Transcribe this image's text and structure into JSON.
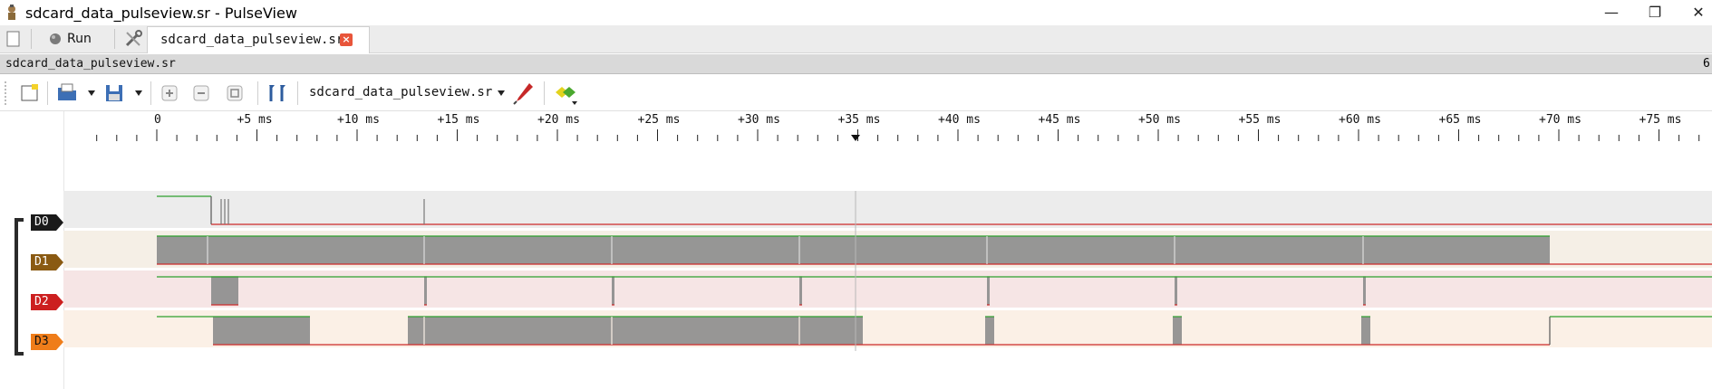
{
  "window": {
    "title": "sdcard_data_pulseview.sr - PulseView",
    "minimize_glyph": "—",
    "restore_glyph": "❐",
    "close_glyph": "✕"
  },
  "tabstrip": {
    "run_label": "Run",
    "doc_tab_label": "sdcard_data_pulseview.sr",
    "close_glyph": "×"
  },
  "session": {
    "title": "sdcard_data_pulseview.sr",
    "overflow_glyph": "6"
  },
  "toolbar": {
    "device_label": "sdcard_data_pulseview.sr"
  },
  "ruler": {
    "labels": [
      "0",
      "+5 ms",
      "+10 ms",
      "+15 ms",
      "+20 ms",
      "+25 ms",
      "+30 ms",
      "+35 ms",
      "+40 ms",
      "+45 ms",
      "+50 ms",
      "+55 ms",
      "+60 ms",
      "+65 ms",
      "+70 ms",
      "+75 ms"
    ]
  },
  "channels": [
    {
      "name": "D0",
      "color": "#1a1a1a",
      "text_color": "#ffffff",
      "bg": "#ececec"
    },
    {
      "name": "D1",
      "color": "#8a5a12",
      "text_color": "#ffffff",
      "bg": "#f5efe6"
    },
    {
      "name": "D2",
      "color": "#cc1f1f",
      "text_color": "#ffffff",
      "bg": "#f6e5e5"
    },
    {
      "name": "D3",
      "color": "#ef7d1a",
      "text_color": "#111111",
      "bg": "#fbf0e6"
    }
  ],
  "colors": {
    "high_line": "#2ea02e",
    "low_line": "#cc2a2a",
    "burst_fill": "#8c8c8c",
    "cursor_line": "#b8b8b8"
  }
}
